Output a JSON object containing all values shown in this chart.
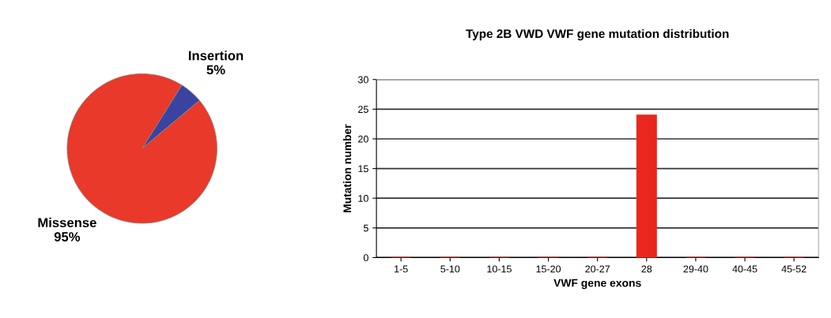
{
  "chart_data": [
    {
      "type": "pie",
      "categories": [
        "Insertion",
        "Missense"
      ],
      "values": [
        5,
        95
      ],
      "colors": [
        "#3a44a0",
        "#e8392a"
      ],
      "value_labels": [
        "5%",
        "95%"
      ]
    },
    {
      "type": "bar",
      "title": "Type 2B VWD VWF gene mutation distribution",
      "xlabel": "VWF gene exons",
      "ylabel": "Mutation number",
      "categories": [
        "1-5",
        "5-10",
        "10-15",
        "15-20",
        "20-27",
        "28",
        "29-40",
        "40-45",
        "45-52"
      ],
      "values": [
        0,
        0,
        0,
        0,
        0,
        24,
        0,
        0,
        0
      ],
      "color": "#e8281e",
      "ylim": [
        0,
        30
      ],
      "yticks": [
        0,
        5,
        10,
        15,
        20,
        25,
        30
      ],
      "grid": "y"
    }
  ]
}
